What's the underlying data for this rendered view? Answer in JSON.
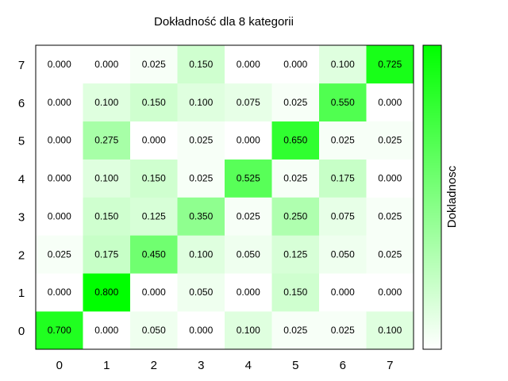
{
  "chart_data": {
    "type": "heatmap",
    "title": "Dokładność dla 8 kategorii",
    "x_labels": [
      "0",
      "1",
      "2",
      "3",
      "4",
      "5",
      "6",
      "7"
    ],
    "y_labels": [
      "0",
      "1",
      "2",
      "3",
      "4",
      "5",
      "6",
      "7"
    ],
    "colorbar_label": "Dokladnosc",
    "color_low": "#ffffff",
    "color_high": "#00ff00",
    "value_range": [
      0,
      0.8
    ],
    "values": [
      [
        0.7,
        0.0,
        0.05,
        0.0,
        0.1,
        0.025,
        0.025,
        0.1
      ],
      [
        0.0,
        0.8,
        0.0,
        0.05,
        0.0,
        0.15,
        0.0,
        0.0
      ],
      [
        0.025,
        0.175,
        0.45,
        0.1,
        0.05,
        0.125,
        0.05,
        0.025
      ],
      [
        0.0,
        0.15,
        0.125,
        0.35,
        0.025,
        0.25,
        0.075,
        0.025
      ],
      [
        0.0,
        0.1,
        0.15,
        0.025,
        0.525,
        0.025,
        0.175,
        0.0
      ],
      [
        0.0,
        0.275,
        0.0,
        0.025,
        0.0,
        0.65,
        0.025,
        0.025
      ],
      [
        0.0,
        0.1,
        0.15,
        0.1,
        0.075,
        0.025,
        0.55,
        0.0
      ],
      [
        0.0,
        0.0,
        0.025,
        0.15,
        0.0,
        0.0,
        0.1,
        0.725
      ]
    ]
  }
}
